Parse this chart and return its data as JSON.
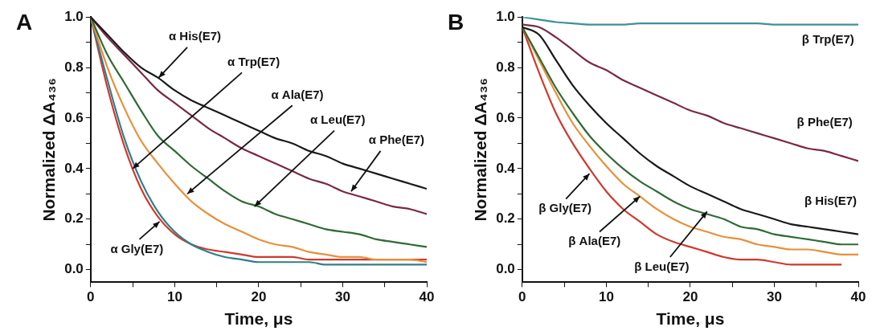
{
  "chart_data": [
    {
      "type": "line",
      "title": "A",
      "xlabel": "Time, μs",
      "ylabel": "Normalized ΔA₄₃₆",
      "x": [
        0,
        2,
        4,
        6,
        8,
        10,
        12,
        14,
        16,
        18,
        20,
        22,
        24,
        26,
        28,
        30,
        32,
        34,
        36,
        38,
        40
      ],
      "xlim": [
        0,
        40
      ],
      "ylim": [
        -0.05,
        1.0
      ],
      "xticks": [
        0,
        {
          "value": 5,
          "label": null
        },
        10,
        {
          "value": 15,
          "label": null
        },
        20,
        {
          "value": 25,
          "label": null
        },
        30,
        {
          "value": 35,
          "label": null
        },
        40
      ],
      "yticks": [
        {
          "value": 0,
          "label": "0.0"
        },
        {
          "value": 0.1,
          "label": null
        },
        0.2,
        {
          "value": 0.3,
          "label": null
        },
        0.4,
        {
          "value": 0.5,
          "label": null
        },
        0.6,
        {
          "value": 0.7,
          "label": null
        },
        0.8,
        {
          "value": 0.9,
          "label": null
        },
        {
          "value": 1,
          "label": "1.0"
        }
      ],
      "grid": false,
      "legend": false,
      "marker": "none",
      "line_style": "solid",
      "series": [
        {
          "color": "#1a1a1a",
          "values": [
            1.0,
            0.93,
            0.86,
            0.8,
            0.76,
            0.71,
            0.67,
            0.64,
            0.61,
            0.58,
            0.55,
            0.52,
            0.5,
            0.47,
            0.45,
            0.42,
            0.4,
            0.38,
            0.36,
            0.34,
            0.32
          ]
        },
        {
          "color": "#7a2846",
          "values": [
            1.0,
            0.92,
            0.85,
            0.78,
            0.71,
            0.66,
            0.61,
            0.56,
            0.52,
            0.48,
            0.45,
            0.42,
            0.39,
            0.36,
            0.34,
            0.31,
            0.29,
            0.27,
            0.25,
            0.24,
            0.22
          ]
        },
        {
          "color": "#2e6b35",
          "values": [
            1.0,
            0.85,
            0.74,
            0.63,
            0.53,
            0.47,
            0.41,
            0.36,
            0.31,
            0.27,
            0.25,
            0.22,
            0.2,
            0.18,
            0.16,
            0.15,
            0.14,
            0.12,
            0.11,
            0.1,
            0.09
          ]
        },
        {
          "color": "#e8903a",
          "values": [
            1.0,
            0.8,
            0.64,
            0.51,
            0.42,
            0.34,
            0.27,
            0.22,
            0.18,
            0.15,
            0.12,
            0.1,
            0.09,
            0.07,
            0.06,
            0.05,
            0.05,
            0.04,
            0.04,
            0.04,
            0.03
          ]
        },
        {
          "color": "#2f7f8c",
          "values": [
            1.0,
            0.75,
            0.52,
            0.35,
            0.23,
            0.15,
            0.1,
            0.07,
            0.05,
            0.04,
            0.03,
            0.03,
            0.03,
            0.03,
            0.02,
            0.02,
            0.02,
            0.02,
            0.02,
            0.02,
            0.02
          ]
        },
        {
          "color": "#d0392e",
          "values": [
            1.0,
            0.72,
            0.49,
            0.32,
            0.21,
            0.14,
            0.1,
            0.08,
            0.07,
            0.06,
            0.05,
            0.05,
            0.05,
            0.04,
            0.04,
            0.04,
            0.04,
            0.04,
            0.04,
            0.04,
            0.04
          ]
        }
      ],
      "annotations": [
        {
          "text": "α His(E7)",
          "x": 8.1,
          "y": 0.76
        },
        {
          "text": "α Trp(E7)",
          "x": 5,
          "y": 0.4
        },
        {
          "text": "α Ala(E7)",
          "x": 11.5,
          "y": 0.3
        },
        {
          "text": "α Leu(E7)",
          "x": 19.5,
          "y": 0.25
        },
        {
          "text": "α Phe(E7)",
          "x": 31,
          "y": 0.31
        },
        {
          "text": "α Gly(E7)",
          "x": 8.2,
          "y": 0.19
        }
      ]
    },
    {
      "type": "line",
      "title": "B",
      "xlabel": "Time, μs",
      "ylabel": "Normalized ΔA₄₃₆",
      "x": [
        0,
        2,
        4,
        6,
        8,
        10,
        12,
        14,
        16,
        18,
        20,
        22,
        24,
        26,
        28,
        30,
        32,
        34,
        36,
        38,
        40
      ],
      "xlim": [
        0,
        40
      ],
      "ylim": [
        -0.05,
        1.0
      ],
      "xticks": [
        0,
        {
          "value": 5,
          "label": null
        },
        10,
        {
          "value": 15,
          "label": null
        },
        20,
        {
          "value": 25,
          "label": null
        },
        30,
        {
          "value": 35,
          "label": null
        },
        40
      ],
      "yticks": [
        {
          "value": 0,
          "label": "0.0"
        },
        {
          "value": 0.1,
          "label": null
        },
        0.2,
        {
          "value": 0.3,
          "label": null
        },
        0.4,
        {
          "value": 0.5,
          "label": null
        },
        0.6,
        {
          "value": 0.7,
          "label": null
        },
        0.8,
        {
          "value": 0.9,
          "label": null
        },
        {
          "value": 1,
          "label": "1.0"
        }
      ],
      "grid": false,
      "legend": false,
      "marker": "none",
      "line_style": "solid",
      "series": [
        {
          "color": "#3f8f9a",
          "values": [
            1.0,
            0.99,
            0.98,
            0.975,
            0.97,
            0.97,
            0.97,
            0.975,
            0.975,
            0.975,
            0.975,
            0.975,
            0.975,
            0.975,
            0.975,
            0.97,
            0.97,
            0.97,
            0.97,
            0.97,
            0.97
          ]
        },
        {
          "color": "#7a2846",
          "values": [
            0.97,
            0.96,
            0.92,
            0.87,
            0.82,
            0.79,
            0.75,
            0.72,
            0.69,
            0.66,
            0.63,
            0.61,
            0.58,
            0.56,
            0.54,
            0.52,
            0.5,
            0.48,
            0.47,
            0.45,
            0.43
          ]
        },
        {
          "color": "#1a1a1a",
          "values": [
            0.96,
            0.93,
            0.83,
            0.73,
            0.65,
            0.58,
            0.52,
            0.46,
            0.41,
            0.37,
            0.33,
            0.3,
            0.27,
            0.24,
            0.22,
            0.2,
            0.18,
            0.17,
            0.16,
            0.15,
            0.14
          ]
        },
        {
          "color": "#2e6b35",
          "values": [
            0.96,
            0.84,
            0.72,
            0.62,
            0.53,
            0.46,
            0.4,
            0.35,
            0.31,
            0.27,
            0.24,
            0.22,
            0.2,
            0.17,
            0.16,
            0.14,
            0.13,
            0.12,
            0.11,
            0.1,
            0.1
          ]
        },
        {
          "color": "#e8903a",
          "values": [
            0.96,
            0.83,
            0.7,
            0.58,
            0.49,
            0.41,
            0.34,
            0.29,
            0.24,
            0.2,
            0.17,
            0.15,
            0.13,
            0.12,
            0.1,
            0.09,
            0.08,
            0.08,
            0.07,
            0.06,
            0.06
          ]
        },
        {
          "color": "#d0392e",
          "values": [
            0.96,
            0.78,
            0.62,
            0.5,
            0.4,
            0.31,
            0.24,
            0.19,
            0.14,
            0.11,
            0.09,
            0.07,
            0.05,
            0.04,
            0.04,
            0.03,
            0.02,
            0.02,
            0.02,
            0.02,
            null
          ]
        }
      ],
      "annotations": [
        "β Trp(E7)",
        "β Phe(E7)",
        "β His(E7)",
        {
          "text": "β Gly(E7)",
          "x": 8,
          "y": 0.38
        },
        {
          "text": "β Ala(E7)",
          "x": 14,
          "y": 0.29
        },
        {
          "text": "β Leu(E7)",
          "x": 22,
          "y": 0.23
        }
      ]
    }
  ]
}
